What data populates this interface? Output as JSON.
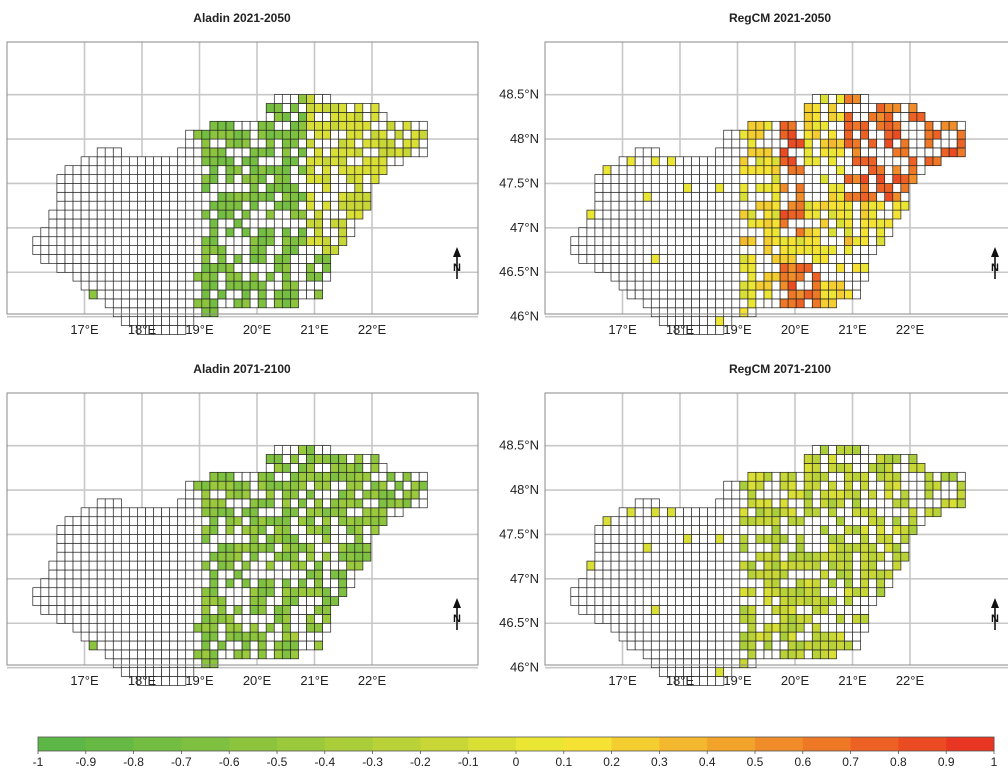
{
  "panels": [
    {
      "title": "Aladin 2021-2050",
      "scheme": "aladin1"
    },
    {
      "title": "RegCM 2021-2050",
      "scheme": "regcm1"
    },
    {
      "title": "Aladin 2071-2100",
      "scheme": "aladin2"
    },
    {
      "title": "RegCM 2071-2100",
      "scheme": "regcm2"
    }
  ],
  "lat_labels": [
    "48.5°N",
    "48°N",
    "47.5°N",
    "47°N",
    "46.5°N",
    "46°N"
  ],
  "lon_labels": [
    "17°E",
    "18°E",
    "19°E",
    "20°E",
    "21°E",
    "22°E"
  ],
  "north_arrow_label": "N",
  "colorbar": {
    "labels": [
      "-1",
      "-0.9",
      "-0.8",
      "-0.7",
      "-0.6",
      "-0.5",
      "-0.4",
      "-0.3",
      "-0.2",
      "-0.1",
      "0",
      "0.1",
      "0.2",
      "0.3",
      "0.4",
      "0.5",
      "0.6",
      "0.7",
      "0.8",
      "0.9",
      "1"
    ],
    "colors": [
      "#5cb746",
      "#66ba44",
      "#72bd42",
      "#7ec040",
      "#8cc43e",
      "#9bc93c",
      "#aacd3a",
      "#b9d238",
      "#c9d736",
      "#dadf35",
      "#ebe534",
      "#f6e233",
      "#f4cd30",
      "#f3b82d",
      "#f2a32a",
      "#f18d28",
      "#ef7826",
      "#ed6124",
      "#eb4b22",
      "#e93622"
    ]
  },
  "colors": {
    "grid": "#c8c8c8",
    "cell_outline": "#222222",
    "frame": "#888888"
  }
}
